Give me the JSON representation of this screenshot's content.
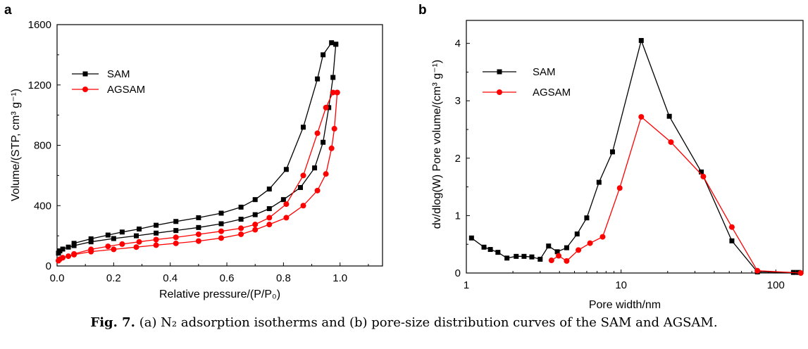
{
  "figure": {
    "caption_label": "Fig. 7.",
    "caption_text": "(a) N₂ adsorption isotherms and (b) pore-size distribution curves of the SAM and AGSAM."
  },
  "chart_data": [
    {
      "type": "line",
      "panel_label": "a",
      "xlabel": "Relative pressure/(P/P₀)",
      "ylabel": "Volume/(STP, cm³ g⁻¹)",
      "xlim": [
        0,
        1.15
      ],
      "ylim": [
        0,
        1600
      ],
      "xticks": [
        0.0,
        0.2,
        0.4,
        0.6,
        0.8,
        1.0
      ],
      "xtick_labels": [
        "0.0",
        "0.2",
        "0.4",
        "0.6",
        "0.8",
        "1.0"
      ],
      "yticks": [
        0,
        400,
        800,
        1200,
        1600
      ],
      "ytick_labels": [
        "0",
        "400",
        "800",
        "1200",
        "1600"
      ],
      "legend_position": "upper-left",
      "series": [
        {
          "name": "SAM",
          "color": "#000000",
          "marker": "square",
          "part": "adsorption",
          "x": [
            0.005,
            0.01,
            0.02,
            0.04,
            0.06,
            0.12,
            0.2,
            0.28,
            0.35,
            0.42,
            0.5,
            0.58,
            0.65,
            0.7,
            0.75,
            0.8,
            0.86,
            0.91,
            0.94,
            0.96,
            0.975,
            0.985
          ],
          "y": [
            85,
            100,
            112,
            125,
            135,
            160,
            182,
            200,
            218,
            235,
            255,
            280,
            310,
            340,
            380,
            440,
            520,
            650,
            820,
            1050,
            1250,
            1470
          ]
        },
        {
          "name": "SAM",
          "color": "#000000",
          "marker": "square",
          "part": "desorption",
          "x": [
            0.985,
            0.97,
            0.94,
            0.92,
            0.87,
            0.81,
            0.75,
            0.7,
            0.65,
            0.58,
            0.5,
            0.42,
            0.35,
            0.29,
            0.23,
            0.18,
            0.12,
            0.06
          ],
          "y": [
            1470,
            1480,
            1400,
            1240,
            920,
            640,
            510,
            440,
            390,
            350,
            320,
            295,
            270,
            245,
            225,
            205,
            180,
            150
          ]
        },
        {
          "name": "AGSAM",
          "color": "#ff0000",
          "marker": "circle",
          "part": "adsorption",
          "x": [
            0.005,
            0.01,
            0.02,
            0.04,
            0.06,
            0.12,
            0.2,
            0.28,
            0.35,
            0.42,
            0.5,
            0.58,
            0.65,
            0.7,
            0.75,
            0.81,
            0.87,
            0.92,
            0.95,
            0.97,
            0.98,
            0.99
          ],
          "y": [
            35,
            45,
            55,
            65,
            75,
            95,
            110,
            125,
            138,
            150,
            165,
            185,
            210,
            240,
            275,
            320,
            400,
            500,
            610,
            780,
            910,
            1150
          ]
        },
        {
          "name": "AGSAM",
          "color": "#ff0000",
          "marker": "circle",
          "part": "desorption",
          "x": [
            0.99,
            0.975,
            0.95,
            0.92,
            0.87,
            0.81,
            0.75,
            0.7,
            0.65,
            0.58,
            0.5,
            0.42,
            0.35,
            0.29,
            0.23,
            0.18,
            0.12,
            0.06
          ],
          "y": [
            1150,
            1150,
            1050,
            880,
            600,
            410,
            320,
            275,
            250,
            230,
            210,
            190,
            175,
            160,
            145,
            130,
            110,
            80
          ]
        }
      ]
    },
    {
      "type": "line",
      "panel_label": "b",
      "xlabel": "Pore width/nm",
      "ylabel": "dv/dlog(W) Pore volume/(cm³ g⁻¹)",
      "x_scale": "log",
      "xlim": [
        1,
        150
      ],
      "ylim": [
        0,
        4.4
      ],
      "xticks": [
        1,
        10,
        100
      ],
      "xtick_labels": [
        "1",
        "10",
        "100"
      ],
      "yticks": [
        0,
        1,
        2,
        3,
        4
      ],
      "ytick_labels": [
        "0",
        "1",
        "2",
        "3",
        "4"
      ],
      "legend_position": "upper-left",
      "series": [
        {
          "name": "SAM",
          "color": "#000000",
          "marker": "square",
          "x": [
            1.08,
            1.3,
            1.43,
            1.6,
            1.83,
            2.1,
            2.36,
            2.65,
            3.0,
            3.4,
            3.87,
            4.45,
            5.2,
            6.0,
            7.2,
            8.8,
            13.5,
            20.5,
            33,
            52,
            76,
            130,
            140
          ],
          "y": [
            0.61,
            0.45,
            0.41,
            0.36,
            0.26,
            0.29,
            0.29,
            0.28,
            0.24,
            0.47,
            0.37,
            0.44,
            0.68,
            0.96,
            1.58,
            2.11,
            4.05,
            2.73,
            1.76,
            0.56,
            0.02,
            0.01,
            0.01
          ]
        },
        {
          "name": "AGSAM",
          "color": "#ff0000",
          "marker": "circle",
          "x": [
            3.55,
            3.95,
            4.45,
            5.3,
            6.3,
            7.6,
            9.8,
            13.5,
            21,
            34,
            52,
            76,
            145
          ],
          "y": [
            0.22,
            0.3,
            0.21,
            0.4,
            0.52,
            0.63,
            1.48,
            2.72,
            2.28,
            1.68,
            0.8,
            0.04,
            0.0
          ]
        }
      ]
    }
  ]
}
